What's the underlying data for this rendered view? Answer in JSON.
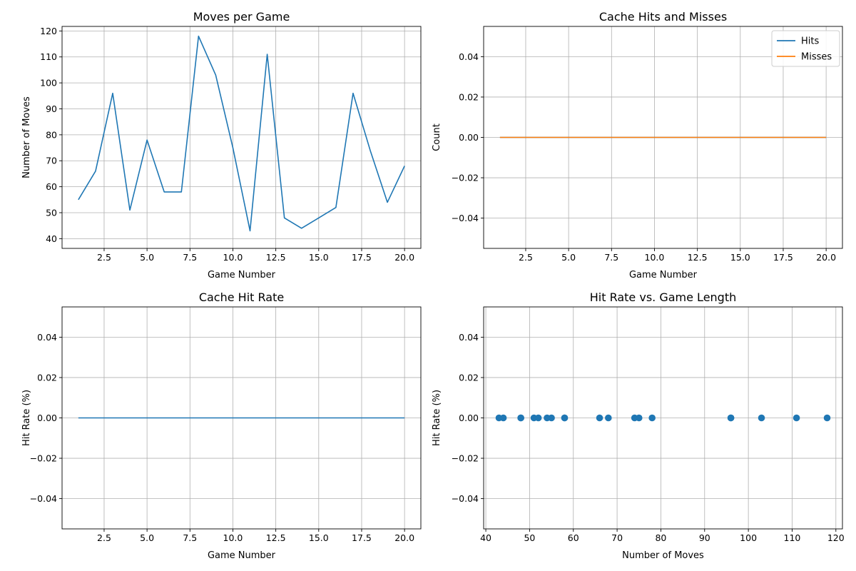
{
  "colors": {
    "series1": "#1f77b4",
    "series2": "#ff7f0e",
    "grid": "#b0b0b0",
    "axes": "#000000"
  },
  "chart_data": [
    {
      "type": "line",
      "title": "Moves per Game",
      "xlabel": "Game Number",
      "ylabel": "Number of Moves",
      "xlim": [
        0.05,
        20.95
      ],
      "ylim": [
        36.25,
        121.75
      ],
      "grid": true,
      "xticks": [
        2.5,
        5.0,
        7.5,
        10.0,
        12.5,
        15.0,
        17.5,
        20.0
      ],
      "xtick_labels": [
        "2.5",
        "5.0",
        "7.5",
        "10.0",
        "12.5",
        "15.0",
        "17.5",
        "20.0"
      ],
      "yticks": [
        40,
        50,
        60,
        70,
        80,
        90,
        100,
        110,
        120
      ],
      "ytick_labels": [
        "40",
        "50",
        "60",
        "70",
        "80",
        "90",
        "100",
        "110",
        "120"
      ],
      "series": [
        {
          "x": [
            1,
            2,
            3,
            4,
            5,
            6,
            7,
            8,
            9,
            10,
            11,
            12,
            13,
            14,
            15,
            16,
            17,
            18,
            19,
            20
          ],
          "values": [
            55,
            66,
            96,
            51,
            78,
            58,
            58,
            118,
            103,
            75,
            43,
            111,
            48,
            44,
            48,
            52,
            96,
            74,
            54,
            68
          ]
        }
      ]
    },
    {
      "type": "line",
      "title": "Cache Hits and Misses",
      "xlabel": "Game Number",
      "ylabel": "Count",
      "xlim": [
        0.05,
        20.95
      ],
      "ylim": [
        -0.055,
        0.055
      ],
      "grid": true,
      "legend": "top-right",
      "xticks": [
        2.5,
        5.0,
        7.5,
        10.0,
        12.5,
        15.0,
        17.5,
        20.0
      ],
      "xtick_labels": [
        "2.5",
        "5.0",
        "7.5",
        "10.0",
        "12.5",
        "15.0",
        "17.5",
        "20.0"
      ],
      "yticks": [
        -0.04,
        -0.02,
        0.0,
        0.02,
        0.04
      ],
      "ytick_labels": [
        "−0.04",
        "−0.02",
        "0.00",
        "0.02",
        "0.04"
      ],
      "series": [
        {
          "name": "Hits",
          "x": [
            1,
            2,
            3,
            4,
            5,
            6,
            7,
            8,
            9,
            10,
            11,
            12,
            13,
            14,
            15,
            16,
            17,
            18,
            19,
            20
          ],
          "values": [
            0,
            0,
            0,
            0,
            0,
            0,
            0,
            0,
            0,
            0,
            0,
            0,
            0,
            0,
            0,
            0,
            0,
            0,
            0,
            0
          ]
        },
        {
          "name": "Misses",
          "x": [
            1,
            2,
            3,
            4,
            5,
            6,
            7,
            8,
            9,
            10,
            11,
            12,
            13,
            14,
            15,
            16,
            17,
            18,
            19,
            20
          ],
          "values": [
            0,
            0,
            0,
            0,
            0,
            0,
            0,
            0,
            0,
            0,
            0,
            0,
            0,
            0,
            0,
            0,
            0,
            0,
            0,
            0
          ]
        }
      ]
    },
    {
      "type": "line",
      "title": "Cache Hit Rate",
      "xlabel": "Game Number",
      "ylabel": "Hit Rate (%)",
      "xlim": [
        0.05,
        20.95
      ],
      "ylim": [
        -0.055,
        0.055
      ],
      "grid": true,
      "xticks": [
        2.5,
        5.0,
        7.5,
        10.0,
        12.5,
        15.0,
        17.5,
        20.0
      ],
      "xtick_labels": [
        "2.5",
        "5.0",
        "7.5",
        "10.0",
        "12.5",
        "15.0",
        "17.5",
        "20.0"
      ],
      "yticks": [
        -0.04,
        -0.02,
        0.0,
        0.02,
        0.04
      ],
      "ytick_labels": [
        "−0.04",
        "−0.02",
        "0.00",
        "0.02",
        "0.04"
      ],
      "series": [
        {
          "x": [
            1,
            2,
            3,
            4,
            5,
            6,
            7,
            8,
            9,
            10,
            11,
            12,
            13,
            14,
            15,
            16,
            17,
            18,
            19,
            20
          ],
          "values": [
            0,
            0,
            0,
            0,
            0,
            0,
            0,
            0,
            0,
            0,
            0,
            0,
            0,
            0,
            0,
            0,
            0,
            0,
            0,
            0
          ]
        }
      ]
    },
    {
      "type": "scatter",
      "title": "Hit Rate vs. Game Length",
      "xlabel": "Number of Moves",
      "ylabel": "Hit Rate (%)",
      "xlim": [
        39.5,
        121.5
      ],
      "ylim": [
        -0.055,
        0.055
      ],
      "grid": true,
      "xticks": [
        40,
        50,
        60,
        70,
        80,
        90,
        100,
        110,
        120
      ],
      "xtick_labels": [
        "40",
        "50",
        "60",
        "70",
        "80",
        "90",
        "100",
        "110",
        "120"
      ],
      "yticks": [
        -0.04,
        -0.02,
        0.0,
        0.02,
        0.04
      ],
      "ytick_labels": [
        "−0.04",
        "−0.02",
        "0.00",
        "0.02",
        "0.04"
      ],
      "series": [
        {
          "x": [
            55,
            66,
            96,
            51,
            78,
            58,
            58,
            118,
            103,
            75,
            43,
            111,
            48,
            44,
            48,
            52,
            96,
            74,
            54,
            68
          ],
          "values": [
            0,
            0,
            0,
            0,
            0,
            0,
            0,
            0,
            0,
            0,
            0,
            0,
            0,
            0,
            0,
            0,
            0,
            0,
            0,
            0
          ]
        }
      ]
    }
  ]
}
